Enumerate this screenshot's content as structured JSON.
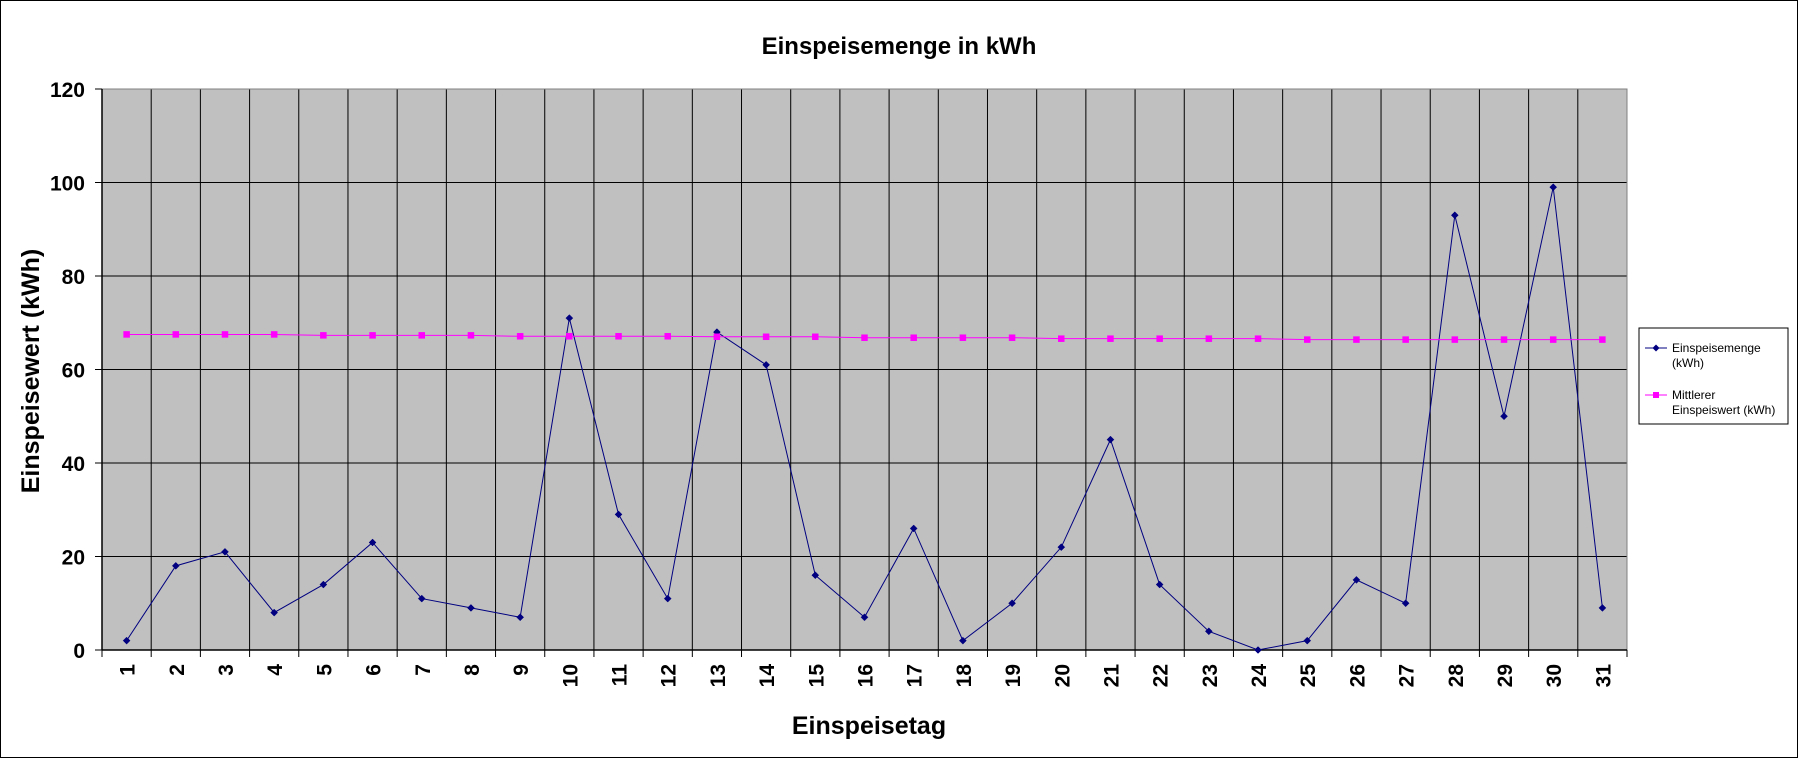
{
  "chart_data": {
    "type": "line",
    "title": "Einspeisemenge in kWh",
    "xlabel": "Einspeisetag",
    "ylabel": "Einspeisewert  (kWh)",
    "categories": [
      "1",
      "2",
      "3",
      "4",
      "5",
      "6",
      "7",
      "8",
      "9",
      "10",
      "11",
      "12",
      "13",
      "14",
      "15",
      "16",
      "17",
      "18",
      "19",
      "20",
      "21",
      "22",
      "23",
      "24",
      "25",
      "26",
      "27",
      "28",
      "29",
      "30",
      "31"
    ],
    "ylim": [
      0,
      120
    ],
    "yticks": [
      0,
      20,
      40,
      60,
      80,
      100,
      120
    ],
    "grid": true,
    "legend_position": "right",
    "plot_background": "#c0c0c0",
    "series": [
      {
        "name": "Einspeisemenge (kWh)",
        "legend_lines": [
          "Einspeisemenge",
          "(kWh)"
        ],
        "color": "#000080",
        "marker": "diamond",
        "values": [
          2,
          18,
          21,
          8,
          14,
          23,
          11,
          9,
          7,
          71,
          29,
          11,
          68,
          61,
          16,
          7,
          26,
          2,
          10,
          22,
          45,
          14,
          4,
          0,
          2,
          15,
          10,
          93,
          50,
          99,
          9
        ]
      },
      {
        "name": "Mittlerer Einspeiswert (kWh)",
        "legend_lines": [
          "Mittlerer",
          "Einspeiswert (kWh)"
        ],
        "color": "#ff00ff",
        "marker": "square",
        "values": [
          67.5,
          67.5,
          67.5,
          67.5,
          67.3,
          67.3,
          67.3,
          67.3,
          67.1,
          67.1,
          67.1,
          67.1,
          67.0,
          67.0,
          67.0,
          66.8,
          66.8,
          66.8,
          66.8,
          66.6,
          66.6,
          66.6,
          66.6,
          66.6,
          66.4,
          66.4,
          66.4,
          66.4,
          66.4,
          66.4,
          66.4
        ]
      }
    ]
  }
}
